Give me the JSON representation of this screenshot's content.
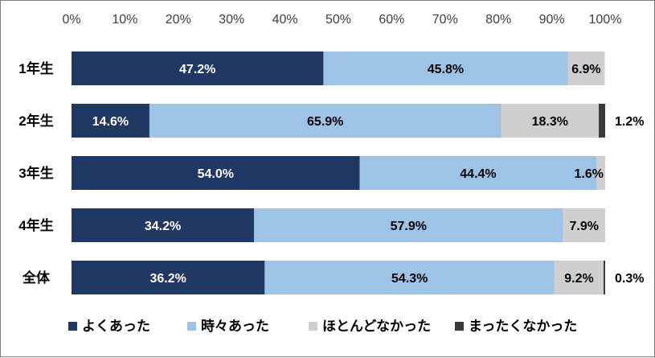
{
  "chart_data": {
    "type": "bar",
    "orientation": "horizontal",
    "stacked": "percent",
    "categories": [
      "1年生",
      "2年生",
      "3年生",
      "4年生",
      "全体"
    ],
    "series": [
      {
        "name": "よくあった",
        "color": "#203864",
        "values": [
          47.2,
          14.6,
          54.0,
          34.2,
          36.2
        ],
        "labels": [
          "47.2%",
          "14.6%",
          "54.0%",
          "34.2%",
          "36.2%"
        ]
      },
      {
        "name": "時々あった",
        "color": "#9dc3e6",
        "values": [
          45.8,
          65.9,
          44.4,
          57.9,
          54.3
        ],
        "labels": [
          "45.8%",
          "65.9%",
          "44.4%",
          "57.9%",
          "54.3%"
        ]
      },
      {
        "name": "ほとんどなかった",
        "color": "#d0cece",
        "values": [
          6.9,
          18.3,
          1.6,
          7.9,
          9.2
        ],
        "labels": [
          "6.9%",
          "18.3%",
          "1.6%",
          "7.9%",
          "9.2%"
        ]
      },
      {
        "name": "まったくなかった",
        "color": "#3a3a3a",
        "values": [
          0.0,
          1.2,
          0.0,
          0.0,
          0.3
        ],
        "labels": [
          "",
          "1.2%",
          "",
          "",
          "0.3%"
        ]
      }
    ],
    "xlim": [
      0,
      100
    ],
    "xticks": [
      "0%",
      "10%",
      "20%",
      "30%",
      "40%",
      "50%",
      "60%",
      "70%",
      "80%",
      "90%",
      "100%"
    ],
    "grid": false,
    "legend_position": "bottom"
  }
}
